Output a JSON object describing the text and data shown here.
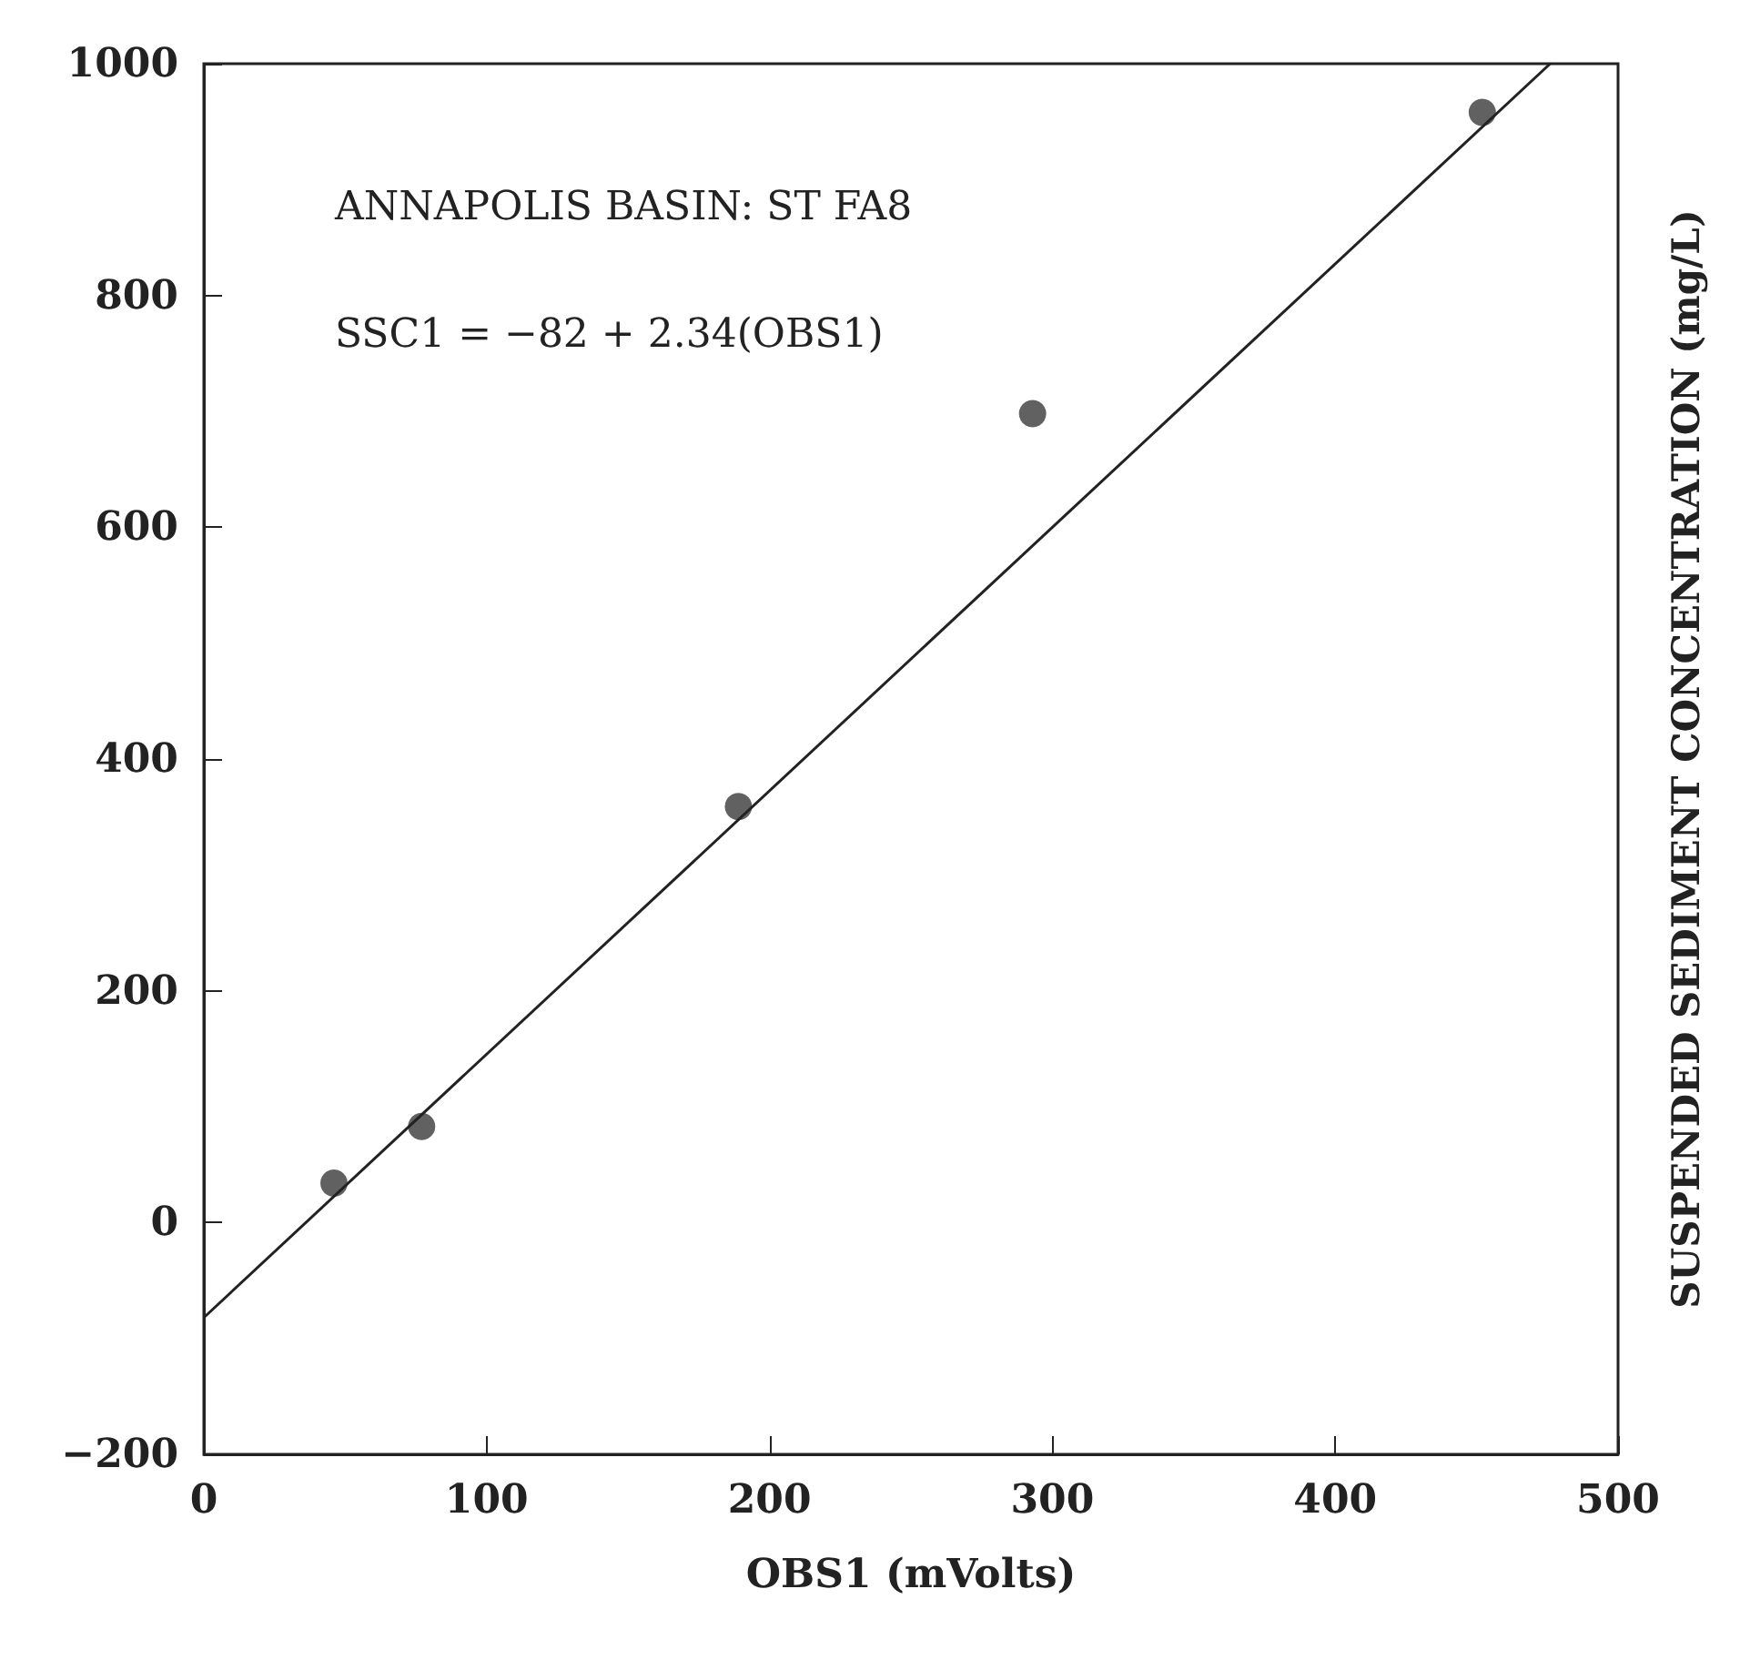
{
  "chart_data": {
    "type": "scatter",
    "xlabel": "OBS1 (mVolts)",
    "ylabel": "SUSPENDED SEDIMENT CONCENTRATION (mg/L)",
    "annotations": [
      "ANNAPOLIS BASIN: ST FA8",
      "SSC1 = −82 + 2.34(OBS1)"
    ],
    "xlim": [
      0,
      500
    ],
    "xticks": [
      0,
      100,
      200,
      300,
      400,
      500
    ],
    "ylim": [
      -200,
      1000
    ],
    "yticks": [
      -200,
      0,
      200,
      400,
      600,
      800,
      1000
    ],
    "grid": false,
    "series": [
      {
        "color": "#3a3a3a",
        "marker": "circle",
        "x": [
          46,
          77,
          189,
          293,
          452
        ],
        "values": [
          34,
          83,
          359,
          698,
          958
        ]
      },
      {
        "type": "line",
        "marker": "none",
        "color": "#222222",
        "x": [
          0,
          476
        ],
        "values": [
          -82,
          1000
        ]
      }
    ]
  }
}
